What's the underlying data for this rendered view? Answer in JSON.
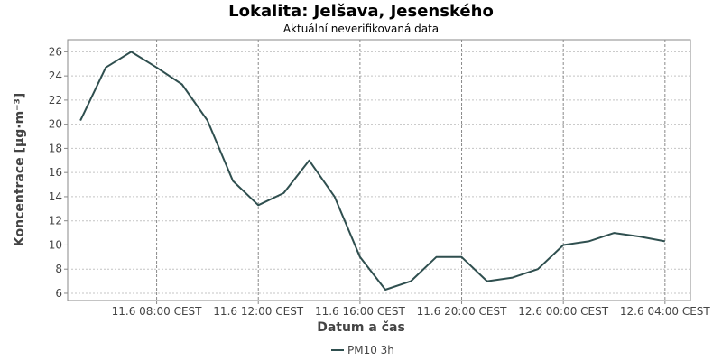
{
  "chart_data": {
    "type": "line",
    "title": "Lokalita: Jelšava, Jesenského",
    "subtitle": "Aktuální neverifikovaná data",
    "xlabel": "Datum a čas",
    "ylabel": "Koncentrace [µg·m⁻³]",
    "ylim": [
      5.4,
      27
    ],
    "y_ticks": [
      6,
      8,
      10,
      12,
      14,
      16,
      18,
      20,
      22,
      24,
      26
    ],
    "x_ticks": [
      {
        "hour": 8,
        "label": "11.6 08:00 CEST"
      },
      {
        "hour": 12,
        "label": "11.6 12:00 CEST"
      },
      {
        "hour": 16,
        "label": "11.6 16:00 CEST"
      },
      {
        "hour": 20,
        "label": "11.6 20:00 CEST"
      },
      {
        "hour": 24,
        "label": "12.6 00:00 CEST"
      },
      {
        "hour": 28,
        "label": "12.6 04:00 CEST"
      }
    ],
    "xlim_hours": [
      4.5,
      29
    ],
    "grid": true,
    "legend_position": "bottom",
    "series": [
      {
        "name": "PM10 3h",
        "color": "#2f4f4f",
        "x_hours": [
          5,
          6,
          7,
          8,
          9,
          10,
          11,
          12,
          13,
          14,
          15,
          16,
          17,
          18,
          19,
          20,
          21,
          22,
          23,
          24,
          25,
          26,
          27,
          28
        ],
        "values": [
          20.3,
          24.7,
          26.0,
          24.7,
          23.3,
          20.3,
          15.3,
          13.3,
          14.3,
          17.0,
          14.0,
          9.0,
          6.3,
          7.0,
          9.0,
          9.0,
          7.0,
          7.3,
          8.0,
          10.0,
          10.3,
          11.0,
          10.7,
          10.3
        ]
      }
    ]
  }
}
